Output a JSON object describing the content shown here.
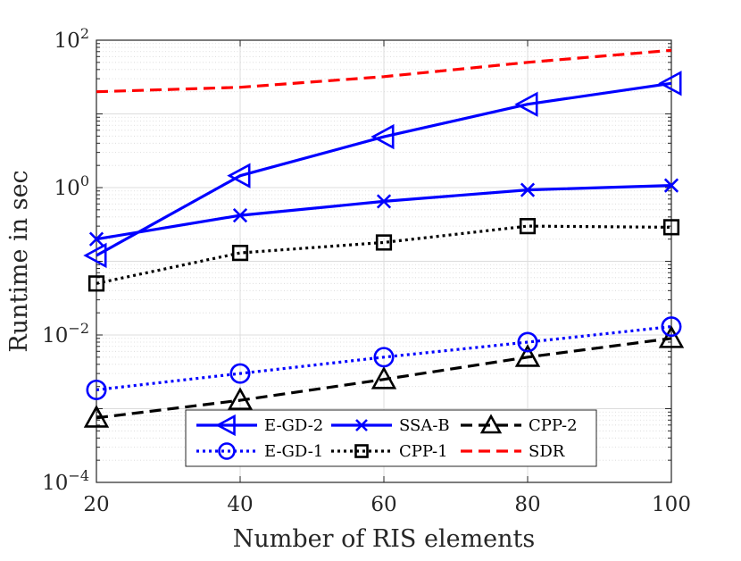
{
  "chart_data": {
    "type": "line",
    "title": "",
    "xlabel": "Number of RIS elements",
    "ylabel": "Runtime in sec",
    "yscale": "log",
    "xlim": [
      20,
      100
    ],
    "ylim": [
      0.0001,
      100
    ],
    "x": [
      20,
      40,
      60,
      80,
      100
    ],
    "x_ticks": [
      "20",
      "40",
      "60",
      "80",
      "100"
    ],
    "y_ticks": [
      {
        "base": "10",
        "exp": "−4",
        "value": 0.0001
      },
      {
        "base": "10",
        "exp": "−2",
        "value": 0.01
      },
      {
        "base": "10",
        "exp": "0",
        "value": 1
      },
      {
        "base": "10",
        "exp": "2",
        "value": 100
      }
    ],
    "grid": true,
    "legend_position": "bottom-center",
    "series": [
      {
        "name": "E-GD-2",
        "color": "#0000ff",
        "dash": "solid",
        "marker": "triangle-left",
        "values": [
          0.12,
          1.45,
          4.9,
          13.5,
          26
        ]
      },
      {
        "name": "SSA-B",
        "color": "#0000ff",
        "dash": "solid",
        "marker": "x",
        "values": [
          0.2,
          0.42,
          0.65,
          0.93,
          1.07
        ]
      },
      {
        "name": "CPP-2",
        "color": "#000000",
        "dash": "dashed",
        "marker": "triangle-up",
        "values": [
          0.00075,
          0.0013,
          0.0025,
          0.005,
          0.009
        ]
      },
      {
        "name": "E-GD-1",
        "color": "#0000ff",
        "dash": "dotted",
        "marker": "circle",
        "values": [
          0.0018,
          0.003,
          0.005,
          0.008,
          0.013
        ]
      },
      {
        "name": "CPP-1",
        "color": "#000000",
        "dash": "dotted",
        "marker": "square",
        "values": [
          0.05,
          0.13,
          0.18,
          0.3,
          0.29
        ]
      },
      {
        "name": "SDR",
        "color": "#ff0000",
        "dash": "dashed",
        "marker": "none",
        "values": [
          20,
          23,
          32,
          50,
          73
        ]
      }
    ]
  }
}
